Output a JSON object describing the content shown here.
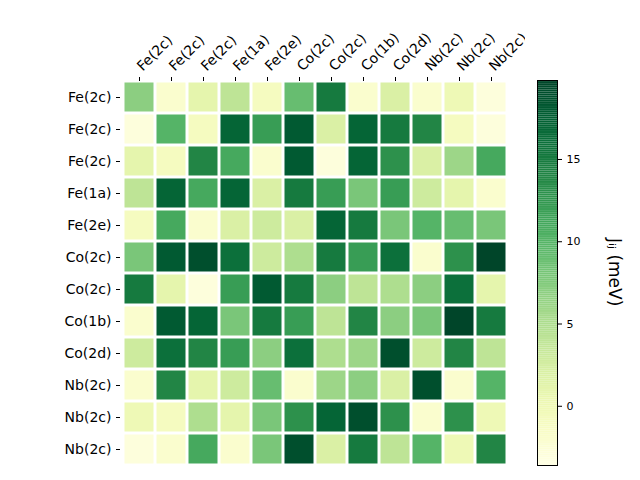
{
  "chart_data": {
    "type": "heatmap",
    "x_labels": [
      "Fe(2c)",
      "Fe(2c)",
      "Fe(2c)",
      "Fe(1a)",
      "Fe(2e)",
      "Co(2c)",
      "Co(2c)",
      "Co(1b)",
      "Co(2d)",
      "Nb(2c)",
      "Nb(2c)",
      "Nb(2c)"
    ],
    "y_labels": [
      "Fe(2c)",
      "Fe(2c)",
      "Fe(2c)",
      "Fe(1a)",
      "Fe(2e)",
      "Co(2c)",
      "Co(2c)",
      "Co(1b)",
      "Co(2d)",
      "Nb(2c)",
      "Nb(2c)",
      "Nb(2c)"
    ],
    "values": [
      [
        7,
        -2,
        1,
        4,
        -1,
        9,
        15,
        -2,
        2,
        -2,
        0,
        -3
      ],
      [
        -3,
        10,
        -1,
        17,
        12,
        18,
        2,
        17,
        15,
        14,
        -1,
        -3
      ],
      [
        1,
        -1,
        14,
        11,
        -2,
        18,
        -3,
        17,
        13,
        2,
        6,
        11
      ],
      [
        4,
        17,
        11,
        17,
        2,
        15,
        12,
        8,
        12,
        3,
        1,
        -2
      ],
      [
        -1,
        11,
        -2,
        2,
        3,
        2,
        17,
        15,
        8,
        10,
        9,
        8
      ],
      [
        8,
        18,
        19,
        16,
        3,
        5,
        15,
        12,
        16,
        -2,
        13,
        20
      ],
      [
        15,
        1,
        -3,
        12,
        18,
        15,
        7,
        4,
        5,
        7,
        16,
        1
      ],
      [
        -2,
        18,
        17,
        8,
        15,
        12,
        4,
        14,
        7,
        8,
        20,
        15
      ],
      [
        3,
        16,
        14,
        12,
        7,
        16,
        5,
        6,
        19,
        3,
        14,
        4
      ],
      [
        -2,
        14,
        1,
        3,
        9,
        -2,
        6,
        7,
        2,
        19,
        -2,
        10
      ],
      [
        0,
        -1,
        5,
        1,
        8,
        13,
        17,
        19,
        13,
        -2,
        13,
        0
      ],
      [
        -3,
        -2,
        11,
        -2,
        8,
        19,
        2,
        15,
        4,
        10,
        0,
        14
      ]
    ],
    "color": "YlGn",
    "colorbar": {
      "label": "Jᵢⱼ (meV)",
      "range": [
        -3.6,
        19.8
      ],
      "ticks": [
        0,
        5,
        10,
        15
      ]
    }
  }
}
